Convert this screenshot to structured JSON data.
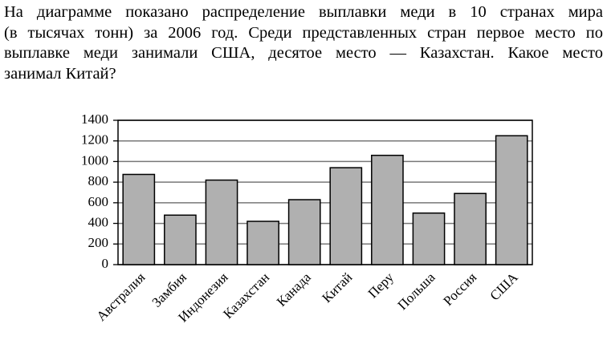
{
  "text": {
    "lines": [
      "На диаграмме показано распределение выплавки меди в 10 странах мира",
      "(в тысячах тонн) за 2006 год. Среди представленных стран первое место по",
      "выплавке меди занимали США, десятое место — Казахстан. Какое место",
      "занимал Китай?"
    ]
  },
  "chart_data": {
    "type": "bar",
    "categories": [
      "Австралия",
      "Замбия",
      "Индонезия",
      "Казахстан",
      "Канада",
      "Китай",
      "Перу",
      "Польша",
      "Россия",
      "США"
    ],
    "values": [
      875,
      480,
      820,
      420,
      630,
      940,
      1060,
      500,
      690,
      1250
    ],
    "color": "#b0b0b0",
    "ylim": [
      0,
      1400
    ],
    "yticks": [
      0,
      200,
      400,
      600,
      800,
      1000,
      1200,
      1400
    ],
    "grid": true
  }
}
